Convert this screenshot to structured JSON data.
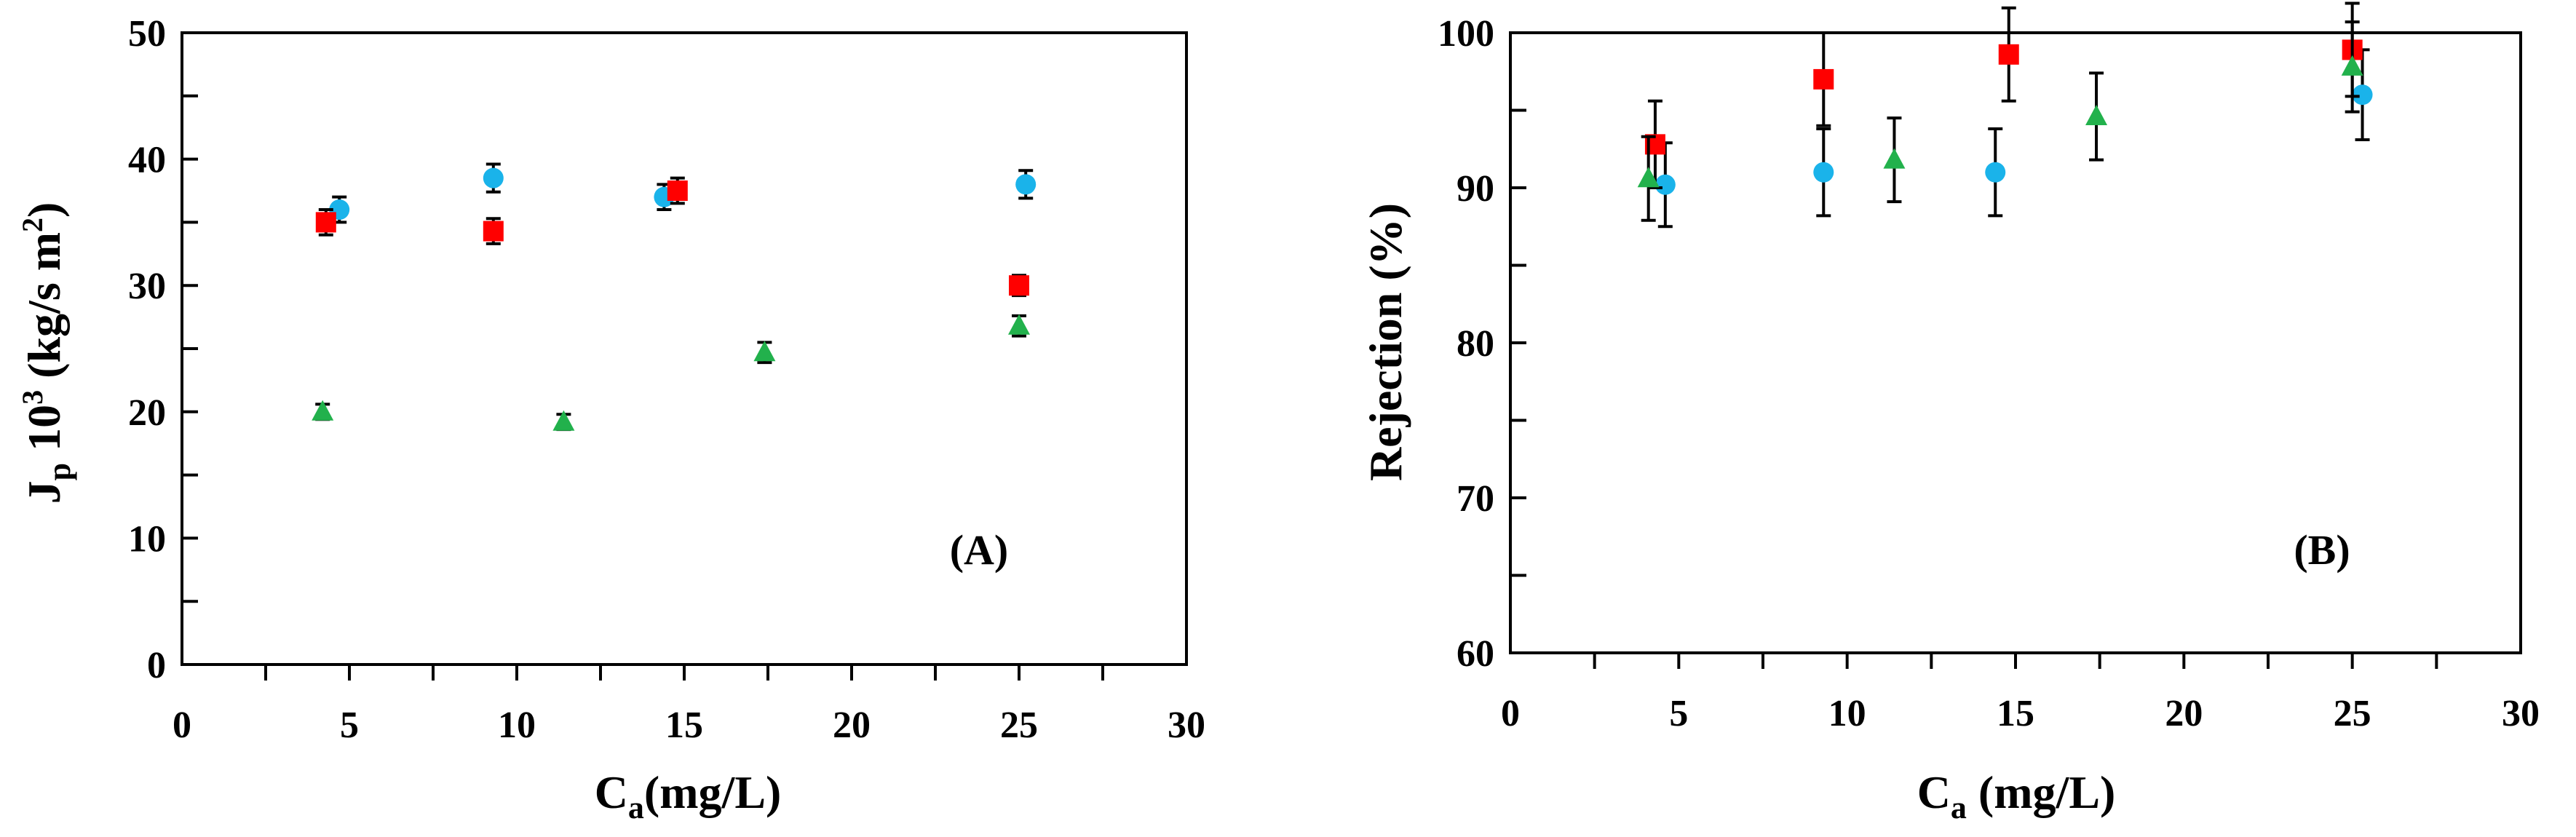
{
  "chart_data": [
    {
      "type": "scatter",
      "panel_label": "(A)",
      "xlabel": {
        "main": "C",
        "sub": "a",
        "rest": "(mg/L)"
      },
      "ylabel": {
        "main": "J",
        "sub": "p",
        "mid": " 10",
        "sup": "3",
        "rest": " (kg/s m",
        "sup2": "2",
        "end": ")"
      },
      "xlim": [
        0,
        30
      ],
      "ylim": [
        0,
        50
      ],
      "xticks": [
        "0",
        "5",
        "10",
        "15",
        "20",
        "25",
        "30"
      ],
      "yticks": [
        "0",
        "10",
        "20",
        "30",
        "40",
        "50"
      ],
      "grid": false,
      "series": [
        {
          "marker": "circle",
          "color": "#1ab3ea",
          "points": [
            {
              "x": 4.7,
              "y": 36.0,
              "err": 1.0
            },
            {
              "x": 9.3,
              "y": 38.5,
              "err": 1.1
            },
            {
              "x": 14.4,
              "y": 37.0,
              "err": 1.0
            },
            {
              "x": 25.2,
              "y": 38.0,
              "err": 1.1
            }
          ]
        },
        {
          "marker": "square",
          "color": "#ff0000",
          "points": [
            {
              "x": 4.3,
              "y": 35.0,
              "err": 1.0
            },
            {
              "x": 9.3,
              "y": 34.3,
              "err": 1.0
            },
            {
              "x": 14.8,
              "y": 37.5,
              "err": 1.0
            },
            {
              "x": 25.0,
              "y": 30.0,
              "err": 0.8
            }
          ]
        },
        {
          "marker": "triangle",
          "color": "#22b14c",
          "points": [
            {
              "x": 4.2,
              "y": 20.0,
              "err": 0.6
            },
            {
              "x": 11.4,
              "y": 19.2,
              "err": 0.6
            },
            {
              "x": 17.4,
              "y": 24.7,
              "err": 0.8
            },
            {
              "x": 25.0,
              "y": 26.8,
              "err": 0.8
            }
          ]
        }
      ]
    },
    {
      "type": "scatter",
      "panel_label": "(B)",
      "xlabel": {
        "main": "C",
        "sub": "a",
        "rest": " (mg/L)"
      },
      "ylabel": {
        "text": "Rejection (%)"
      },
      "xlim": [
        0,
        30
      ],
      "ylim": [
        60,
        100
      ],
      "xticks": [
        "0",
        "5",
        "10",
        "15",
        "20",
        "25",
        "30"
      ],
      "yticks": [
        "60",
        "70",
        "80",
        "90",
        "100"
      ],
      "grid": false,
      "series": [
        {
          "marker": "circle",
          "color": "#1ab3ea",
          "points": [
            {
              "x": 4.6,
              "y": 90.2,
              "err": 2.7
            },
            {
              "x": 9.3,
              "y": 91.0,
              "err": 2.8
            },
            {
              "x": 14.4,
              "y": 91.0,
              "err": 2.8
            },
            {
              "x": 25.3,
              "y": 96.0,
              "err": 2.9
            }
          ]
        },
        {
          "marker": "square",
          "color": "#ff0000",
          "points": [
            {
              "x": 4.3,
              "y": 92.8,
              "err": 2.8
            },
            {
              "x": 9.3,
              "y": 97.0,
              "err": 3.0
            },
            {
              "x": 14.8,
              "y": 98.6,
              "err": 3.0
            },
            {
              "x": 25.0,
              "y": 98.9,
              "err": 3.0
            }
          ]
        },
        {
          "marker": "triangle",
          "color": "#22b14c",
          "points": [
            {
              "x": 4.1,
              "y": 90.6,
              "err": 2.7
            },
            {
              "x": 11.4,
              "y": 91.8,
              "err": 2.7
            },
            {
              "x": 17.4,
              "y": 94.6,
              "err": 2.8
            },
            {
              "x": 25.0,
              "y": 97.8,
              "err": 2.9
            }
          ]
        }
      ]
    }
  ]
}
